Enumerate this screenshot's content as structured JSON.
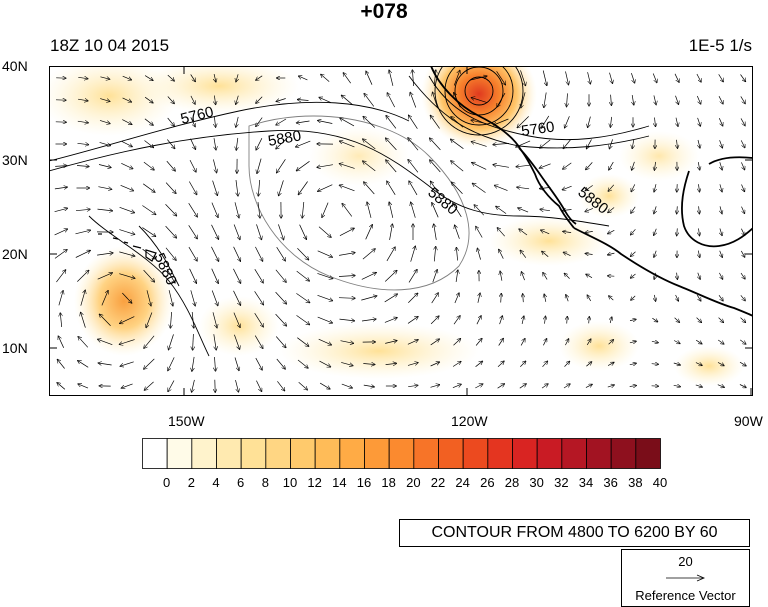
{
  "title": "+078",
  "date_label": "18Z 10 04 2015",
  "units_label": "1E-5 1/s",
  "lat_labels": [
    "40N",
    "30N",
    "20N",
    "10N"
  ],
  "lon_labels": [
    "150W",
    "120W",
    "90W"
  ],
  "contour_labels": [
    "5760",
    "5880",
    "5880",
    "5760",
    "5880",
    "5880"
  ],
  "colorbar": {
    "labels": [
      "0",
      "2",
      "4",
      "6",
      "8",
      "10",
      "12",
      "14",
      "16",
      "18",
      "20",
      "22",
      "24",
      "26",
      "28",
      "30",
      "32",
      "34",
      "36",
      "38",
      "40"
    ],
    "colors": [
      "#ffffff",
      "#fffbe8",
      "#fff3cc",
      "#ffeab0",
      "#ffe197",
      "#ffd683",
      "#ffca6c",
      "#ffbc58",
      "#ffab45",
      "#fd9a38",
      "#fb8a2f",
      "#f77428",
      "#f26022",
      "#ec4a1f",
      "#e43520",
      "#d92422",
      "#c91b24",
      "#b51724",
      "#a21322",
      "#8e101e",
      "#7a0d19"
    ]
  },
  "contour_info": "CONTOUR FROM 4800 TO 6200 BY 60",
  "reference_vector": {
    "value": "20",
    "label": "Reference Vector"
  }
}
